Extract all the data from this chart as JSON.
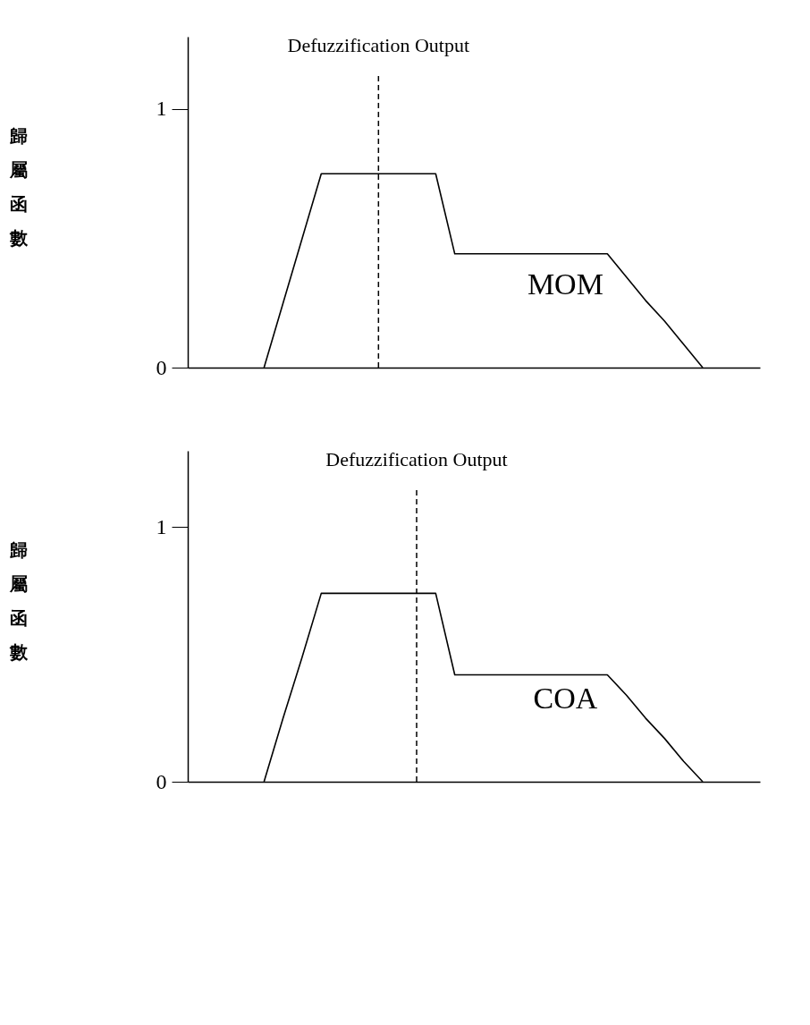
{
  "chart_data": [
    {
      "type": "line",
      "ylabel": "歸屬函數",
      "categories": [
        null,
        null,
        null,
        null,
        null,
        null,
        null,
        null,
        null,
        null,
        null,
        null,
        null,
        null,
        null,
        null,
        null,
        null,
        null,
        null,
        null,
        null,
        null,
        null,
        null,
        null,
        null,
        null,
        null,
        null,
        null
      ],
      "series": [
        {
          "color": "#000000",
          "values": [
            null,
            null,
            null,
            null,
            0,
            0.25,
            0.5,
            0.75,
            0.75,
            0.75,
            0.75,
            0.75,
            0.75,
            0.75,
            0.44,
            0.44,
            0.44,
            0.44,
            0.44,
            0.44,
            0.44,
            0.44,
            0.44,
            0.35,
            0.26,
            0.18,
            0.09,
            0,
            null,
            null,
            null
          ]
        }
      ],
      "ylim": [
        0,
        1.28
      ],
      "yticks": [
        0,
        1
      ],
      "tick_labels": "y",
      "marker": "none",
      "line_style": "solid",
      "annotations": [
        "Defuzzification Output",
        "MOM"
      ]
    },
    {
      "type": "line",
      "ylabel": "歸屬函數",
      "categories": [
        null,
        null,
        null,
        null,
        null,
        null,
        null,
        null,
        null,
        null,
        null,
        null,
        null,
        null,
        null,
        null,
        null,
        null,
        null,
        null,
        null,
        null,
        null,
        null,
        null,
        null,
        null,
        null,
        null,
        null,
        null
      ],
      "series": [
        {
          "color": "#000000",
          "values": [
            null,
            null,
            null,
            null,
            0,
            0.25,
            0.49,
            0.74,
            0.74,
            0.74,
            0.74,
            0.74,
            0.74,
            0.74,
            0.42,
            0.42,
            0.42,
            0.42,
            0.42,
            0.42,
            0.42,
            0.42,
            0.42,
            0.34,
            0.25,
            0.17,
            0.08,
            0,
            null,
            null,
            null
          ]
        }
      ],
      "ylim": [
        0,
        1.3
      ],
      "yticks": [
        0,
        1
      ],
      "tick_labels": "y",
      "marker": "none",
      "line_style": "solid",
      "annotations": [
        "Defuzzification Output",
        "COA"
      ]
    }
  ]
}
